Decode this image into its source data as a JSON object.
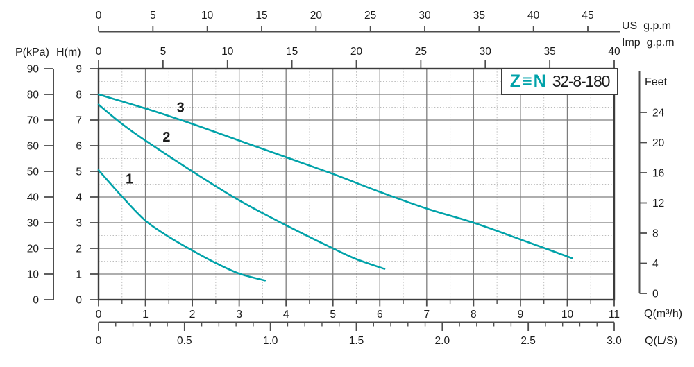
{
  "brand": {
    "logo": "Z≡N",
    "model": "32-8-180"
  },
  "labels": {
    "us_gpm": "US  g.p.m",
    "imp_gpm": "Imp  g.p.m",
    "p_kpa": "P(kPa)",
    "h_m": "H(m)",
    "feet": "Feet",
    "q_m3h": "Q(m³/h)",
    "q_ls": "Q(L/S)"
  },
  "colors": {
    "curve_teal": "#00a2a9",
    "grid_major": "#7d7d7d",
    "grid_minor": "#bcbcbc",
    "plot_border": "#3c3c3c",
    "axis_line": "#4d4d4d",
    "text": "#1b1b1b"
  },
  "chart_data": {
    "type": "line",
    "title": "Z≡N 32-8-180 pump performance curves",
    "xlabel": "Q(m³/h)",
    "ylabel": "H(m)",
    "xlim": [
      0,
      11
    ],
    "ylim": [
      0,
      9
    ],
    "grid": {
      "major_step": 1.0,
      "minor_step": 0.5,
      "minor_style": "dotted"
    },
    "x_axes": {
      "us_gpm": {
        "unit": "US  g.p.m",
        "ticks": [
          0,
          5,
          10,
          15,
          20,
          25,
          30,
          35,
          40,
          45
        ],
        "range_shown": [
          0,
          45
        ]
      },
      "imp_gpm": {
        "unit": "Imp  g.p.m",
        "ticks": [
          0,
          5,
          10,
          15,
          20,
          25,
          30,
          35,
          40
        ],
        "range_shown": [
          0,
          40
        ]
      },
      "q_m3h": {
        "unit": "Q(m³/h)",
        "ticks": [
          0,
          1,
          2,
          3,
          4,
          5,
          6,
          7,
          8,
          9,
          10,
          11
        ],
        "minor_step": 0.5
      },
      "q_ls": {
        "unit": "Q(L/S)",
        "tick_labels": [
          "0",
          "0.5",
          "1.0",
          "1.5",
          "2.0",
          "2.5",
          "3.0"
        ],
        "tick_values": [
          0,
          0.5,
          1.0,
          1.5,
          2.0,
          2.5,
          3.0
        ],
        "minor_step": 0.1,
        "range_shown": [
          0,
          3.0
        ]
      }
    },
    "y_axes": {
      "p_kpa": {
        "unit": "P(kPa)",
        "ticks": [
          90,
          80,
          70,
          60,
          50,
          40,
          30,
          20,
          10,
          0
        ],
        "range_shown": [
          0,
          90
        ]
      },
      "h_m": {
        "unit": "H(m)",
        "ticks": [
          9,
          8,
          7,
          6,
          5,
          4,
          3,
          2,
          1,
          0
        ],
        "range_shown": [
          0,
          9
        ]
      },
      "feet": {
        "unit": "Feet",
        "ticks": [
          24,
          20,
          16,
          12,
          8,
          4,
          0
        ],
        "range_shown": [
          0,
          29.4
        ]
      }
    },
    "series": [
      {
        "name": "1",
        "label_at": [
          0.66,
          4.72
        ],
        "points": [
          [
            0,
            5.05
          ],
          [
            0.5,
            4.02
          ],
          [
            1,
            3.08
          ],
          [
            1.5,
            2.45
          ],
          [
            2,
            1.92
          ],
          [
            2.5,
            1.43
          ],
          [
            3,
            1.02
          ],
          [
            3.55,
            0.75
          ]
        ]
      },
      {
        "name": "2",
        "label_at": [
          1.45,
          6.35
        ],
        "points": [
          [
            0,
            7.6
          ],
          [
            0.5,
            6.85
          ],
          [
            1,
            6.2
          ],
          [
            2,
            5.0
          ],
          [
            3,
            3.87
          ],
          [
            4,
            2.9
          ],
          [
            5,
            2.0
          ],
          [
            5.5,
            1.58
          ],
          [
            6.1,
            1.2
          ]
        ]
      },
      {
        "name": "3",
        "label_at": [
          1.75,
          7.5
        ],
        "points": [
          [
            0,
            8.0
          ],
          [
            1,
            7.45
          ],
          [
            2,
            6.85
          ],
          [
            3,
            6.2
          ],
          [
            4,
            5.55
          ],
          [
            5,
            4.9
          ],
          [
            6,
            4.2
          ],
          [
            7,
            3.55
          ],
          [
            8,
            3.0
          ],
          [
            9,
            2.35
          ],
          [
            10.1,
            1.62
          ]
        ]
      }
    ]
  }
}
